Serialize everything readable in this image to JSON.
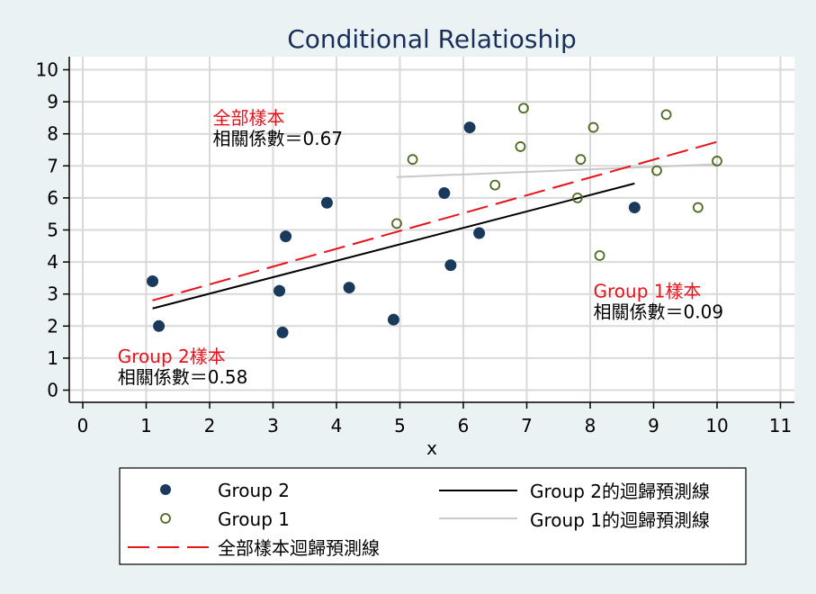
{
  "chart_data": {
    "type": "scatter",
    "title": "Conditional Relatioship",
    "xlabel": "x",
    "ylabel": "",
    "xlim": [
      0,
      11
    ],
    "ylim": [
      0,
      10
    ],
    "x_ticks": [
      0,
      1,
      2,
      3,
      4,
      5,
      6,
      7,
      8,
      9,
      10,
      11
    ],
    "y_ticks": [
      0,
      1,
      2,
      3,
      4,
      5,
      6,
      7,
      8,
      9,
      10
    ],
    "grid": true,
    "colors": {
      "background": "#eaf2f3",
      "plot_background": "#ffffff",
      "grid": "#d9d9d9",
      "group2": "#1a3a5c",
      "group1": "#4d6b1f",
      "fit_all": "#e8121b",
      "fit_group2": "#000000",
      "fit_group1": "#c8c8c8",
      "title": "#1a2e5a"
    },
    "series": [
      {
        "name": "Group 2",
        "marker": "filled-circle",
        "points": [
          {
            "x": 1.1,
            "y": 3.4
          },
          {
            "x": 1.2,
            "y": 2.0
          },
          {
            "x": 3.1,
            "y": 3.1
          },
          {
            "x": 3.15,
            "y": 1.8
          },
          {
            "x": 3.2,
            "y": 4.8
          },
          {
            "x": 3.85,
            "y": 5.85
          },
          {
            "x": 4.2,
            "y": 3.2
          },
          {
            "x": 4.9,
            "y": 2.2
          },
          {
            "x": 5.7,
            "y": 6.15
          },
          {
            "x": 5.8,
            "y": 3.9
          },
          {
            "x": 6.1,
            "y": 8.2
          },
          {
            "x": 6.25,
            "y": 4.9
          },
          {
            "x": 8.7,
            "y": 5.7
          }
        ]
      },
      {
        "name": "Group 1",
        "marker": "hollow-circle",
        "points": [
          {
            "x": 4.95,
            "y": 5.2
          },
          {
            "x": 5.2,
            "y": 7.2
          },
          {
            "x": 6.5,
            "y": 6.4
          },
          {
            "x": 6.9,
            "y": 7.6
          },
          {
            "x": 6.95,
            "y": 8.8
          },
          {
            "x": 7.8,
            "y": 6.0
          },
          {
            "x": 7.85,
            "y": 7.2
          },
          {
            "x": 8.05,
            "y": 8.2
          },
          {
            "x": 8.15,
            "y": 4.2
          },
          {
            "x": 9.05,
            "y": 6.85
          },
          {
            "x": 9.2,
            "y": 8.6
          },
          {
            "x": 9.7,
            "y": 5.7
          },
          {
            "x": 10.0,
            "y": 7.15
          }
        ]
      }
    ],
    "fit_lines": [
      {
        "name": "全部樣本迴歸預測線",
        "style": "dashed",
        "color": "#e8121b",
        "x": [
          1.1,
          10.0
        ],
        "y": [
          2.8,
          7.75
        ]
      },
      {
        "name": "Group 2的迴歸預測線",
        "style": "solid",
        "color": "#000000",
        "x": [
          1.1,
          8.7
        ],
        "y": [
          2.55,
          6.45
        ]
      },
      {
        "name": "Group 1的迴歸預測線",
        "style": "solid",
        "color": "#c8c8c8",
        "x": [
          4.95,
          10.0
        ],
        "y": [
          6.65,
          7.05
        ]
      }
    ],
    "annotations": [
      {
        "label": "全部樣本",
        "text": "相關係數＝0.67",
        "x": 2.05,
        "y": 8.3
      },
      {
        "label": "Group 1樣本",
        "text": "相關係數＝0.09",
        "x": 8.05,
        "y": 2.9
      },
      {
        "label": "Group 2樣本",
        "text": "相關係數＝0.58",
        "x": 0.55,
        "y": 0.85
      }
    ],
    "legend": {
      "placement": "bottom",
      "entries": [
        "Group 2",
        "Group 1",
        "全部樣本迴歸預測線",
        "Group 2的迴歸預測線",
        "Group 1的迴歸預測線"
      ]
    }
  }
}
